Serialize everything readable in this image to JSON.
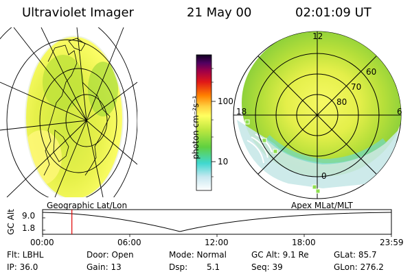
{
  "header": {
    "instrument": "Ultraviolet Imager",
    "date": "21 May 00",
    "time": "02:01:09 UT"
  },
  "colorbar": {
    "unit_label": "photon cm⁻²s⁻¹",
    "ticks": [
      "100",
      "10"
    ],
    "scale": "log"
  },
  "polar_plot": {
    "mlt_labels": [
      "12",
      "18",
      "6",
      "0"
    ],
    "lat_labels": [
      "60",
      "70",
      "80"
    ]
  },
  "timeline": {
    "left_title": "Geographic Lat/Lon",
    "right_title": "Apex MLat/MLT",
    "axis_label": "GC Alt",
    "y_ticks": [
      "9.0",
      "1.8"
    ],
    "x_ticks": [
      "00:00",
      "06:00",
      "12:00",
      "18:00",
      "23:59"
    ],
    "marker_time_fraction": 0.084
  },
  "info": {
    "filter": "Flt: LBHL",
    "ip": "IP: 36.0",
    "door": "Door: Open",
    "gain": "Gain: 13",
    "mode": "Mode: Normal",
    "dsp_label": "Dsp:",
    "dsp_value": "5.1",
    "gc_alt": "GC Alt: 9.1 Re",
    "seq": "Seq: 39",
    "glat": "GLat: 85.7",
    "glon": "GLon: 276.2"
  },
  "colors": {
    "marker": "#e00000",
    "bright_emission": "#9fd82e",
    "mid_emission": "#d9ec44",
    "dim_emission": "#ffff7a"
  }
}
